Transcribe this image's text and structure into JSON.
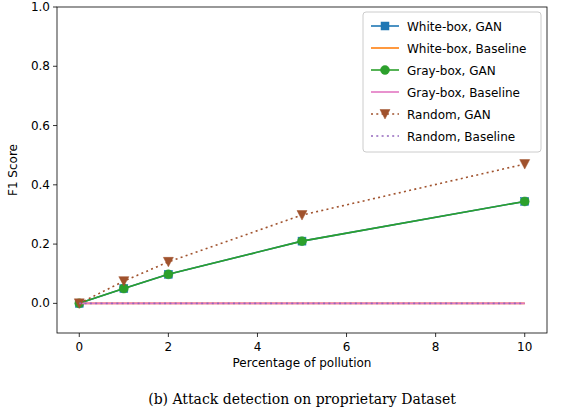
{
  "chart_data": {
    "type": "line",
    "caption": "(b) Attack detection on proprietary Dataset",
    "x_label": "Percentage of pollution",
    "y_label": "F1 Score",
    "x": [
      0,
      1,
      2,
      5,
      10
    ],
    "series": [
      {
        "name": "White-box, GAN",
        "color": "#1f77b4",
        "marker": "square",
        "line_style": "solid",
        "values": [
          0,
          0.05,
          0.098,
          0.21,
          0.344
        ]
      },
      {
        "name": "White-box, Baseline",
        "color": "#ff7f0e",
        "line_style": "solid",
        "values": [
          0,
          0,
          0,
          0,
          0
        ]
      },
      {
        "name": "Gray-box, GAN",
        "color": "#2ca02c",
        "marker": "circle",
        "line_style": "solid",
        "values": [
          0,
          0.05,
          0.098,
          0.21,
          0.344
        ]
      },
      {
        "name": "Gray-box, Baseline",
        "color": "#e377c2",
        "line_style": "solid",
        "values": [
          0,
          0,
          0,
          0,
          0
        ]
      },
      {
        "name": "Random, GAN",
        "color": "#a0522d",
        "marker": "triangle_down",
        "line_style": "dotted",
        "values": [
          0,
          0.075,
          0.14,
          0.298,
          0.47
        ]
      },
      {
        "name": "Random, Baseline",
        "color": "#9467bd",
        "line_style": "dotted",
        "values": [
          0,
          0,
          0,
          0,
          0
        ]
      }
    ],
    "xlim": [
      -0.5,
      10.5
    ],
    "ylim": [
      -0.1,
      1.0
    ],
    "xticks": [
      0,
      2,
      4,
      6,
      8,
      10
    ],
    "yticks": [
      {
        "value": 0,
        "label": "0.0"
      },
      {
        "value": 0.2,
        "label": "0.2"
      },
      {
        "value": 0.4,
        "label": "0.4"
      },
      {
        "value": 0.6,
        "label": "0.6"
      },
      {
        "value": 0.8,
        "label": "0.8"
      },
      {
        "value": 1.0,
        "label": "1.0"
      }
    ],
    "grid": false,
    "legend": "upper right"
  }
}
